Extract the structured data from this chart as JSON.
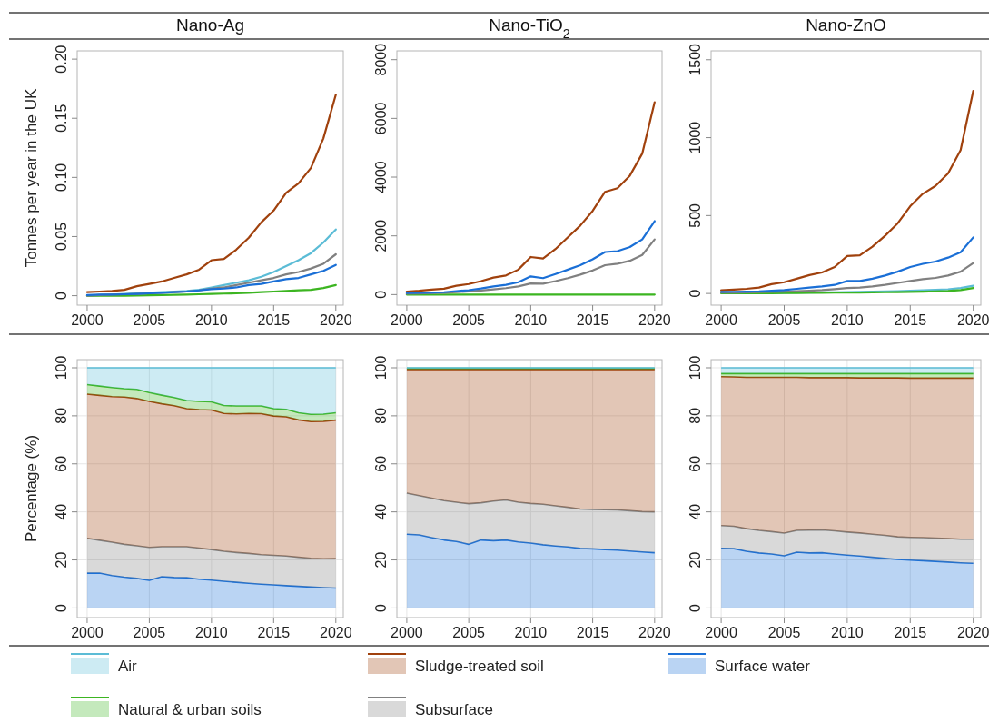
{
  "chart_data": [
    {
      "type": "line",
      "title": "Nano-Ag",
      "ylabel": "Tonnes per year in the UK",
      "x": [
        2000,
        2001,
        2002,
        2003,
        2004,
        2005,
        2006,
        2007,
        2008,
        2009,
        2010,
        2011,
        2012,
        2013,
        2014,
        2015,
        2016,
        2017,
        2018,
        2019,
        2020
      ],
      "xlim": [
        1999.2,
        2020.6
      ],
      "xticks": [
        2000,
        2005,
        2010,
        2015,
        2020
      ],
      "ylim": [
        -0.008,
        0.207
      ],
      "yticks": [
        0,
        0.05,
        {
          "value": 0.1,
          "label": "0.10"
        },
        0.15,
        {
          "value": 0.2,
          "label": "0.20"
        }
      ],
      "series": [
        {
          "color": "#5bbcd6",
          "values": [
            0,
            0.0005,
            0.001,
            0.0015,
            0.002,
            0.0025,
            0.003,
            0.0035,
            0.004,
            0.005,
            0.007,
            0.009,
            0.011,
            0.013,
            0.016,
            0.02,
            0.025,
            0.03,
            0.036,
            0.045,
            0.056
          ]
        },
        {
          "color": "#3cb521",
          "values": [
            0,
            0,
            0,
            0,
            0.0002,
            0.0004,
            0.0006,
            0.0008,
            0.001,
            0.0012,
            0.0015,
            0.0018,
            0.002,
            0.0025,
            0.003,
            0.0035,
            0.004,
            0.0045,
            0.005,
            0.0065,
            0.009
          ]
        },
        {
          "color": "#a0410d",
          "values": [
            0.003,
            0.0035,
            0.004,
            0.005,
            0.008,
            0.01,
            0.012,
            0.015,
            0.018,
            0.022,
            0.03,
            0.031,
            0.039,
            0.049,
            0.062,
            0.072,
            0.087,
            0.095,
            0.108,
            0.133,
            0.17
          ]
        },
        {
          "color": "#808080",
          "values": [
            0,
            0.0005,
            0.001,
            0.0012,
            0.0015,
            0.002,
            0.0025,
            0.003,
            0.0035,
            0.0045,
            0.006,
            0.007,
            0.009,
            0.011,
            0.013,
            0.015,
            0.018,
            0.02,
            0.023,
            0.027,
            0.035
          ]
        },
        {
          "color": "#1a6fd6",
          "values": [
            0.0005,
            0.001,
            0.001,
            0.0012,
            0.0015,
            0.002,
            0.0025,
            0.003,
            0.0035,
            0.0045,
            0.0055,
            0.006,
            0.007,
            0.009,
            0.01,
            0.012,
            0.014,
            0.015,
            0.018,
            0.021,
            0.026
          ]
        }
      ]
    },
    {
      "type": "line",
      "title": "Nano-TiO$_{2}$",
      "x": [
        2000,
        2001,
        2002,
        2003,
        2004,
        2005,
        2006,
        2007,
        2008,
        2009,
        2010,
        2011,
        2012,
        2013,
        2014,
        2015,
        2016,
        2017,
        2018,
        2019,
        2020
      ],
      "xlim": [
        1999.2,
        2020.6
      ],
      "xticks": [
        2000,
        2005,
        2010,
        2015,
        2020
      ],
      "ylim": [
        -360,
        8300
      ],
      "yticks": [
        0,
        2000,
        4000,
        6000,
        8000
      ],
      "series": [
        {
          "color": "#3cb521",
          "values": [
            0,
            0,
            0,
            0,
            0,
            0,
            0,
            0,
            0,
            0,
            0,
            0,
            0,
            0,
            0,
            0,
            0,
            0,
            0,
            0,
            0
          ]
        },
        {
          "color": "#a0410d",
          "values": [
            100,
            130,
            170,
            200,
            300,
            360,
            460,
            580,
            650,
            850,
            1280,
            1230,
            1550,
            1950,
            2350,
            2850,
            3500,
            3620,
            4050,
            4800,
            6550
          ]
        },
        {
          "color": "#808080",
          "values": [
            30,
            40,
            50,
            60,
            80,
            110,
            140,
            180,
            220,
            280,
            380,
            370,
            460,
            560,
            680,
            820,
            1000,
            1050,
            1150,
            1350,
            1880
          ]
        },
        {
          "color": "#1a6fd6",
          "values": [
            50,
            60,
            70,
            80,
            120,
            150,
            210,
            280,
            330,
            420,
            620,
            560,
            700,
            850,
            1000,
            1200,
            1450,
            1480,
            1620,
            1880,
            2500
          ]
        }
      ]
    },
    {
      "type": "line",
      "title": "Nano-ZnO",
      "x": [
        2000,
        2001,
        2002,
        2003,
        2004,
        2005,
        2006,
        2007,
        2008,
        2009,
        2010,
        2011,
        2012,
        2013,
        2014,
        2015,
        2016,
        2017,
        2018,
        2019,
        2020
      ],
      "xlim": [
        1999.2,
        2020.6
      ],
      "xticks": [
        2000,
        2005,
        2010,
        2015,
        2020
      ],
      "ylim": [
        -75,
        1557
      ],
      "yticks": [
        0,
        500,
        1000,
        1500
      ],
      "series": [
        {
          "color": "#5bbcd6",
          "values": [
            null,
            null,
            3,
            3,
            4,
            4,
            5,
            6,
            7,
            8,
            9,
            10,
            12,
            13,
            15,
            17,
            20,
            23,
            27,
            35,
            50
          ]
        },
        {
          "color": "#3cb521",
          "values": [
            1,
            1,
            2,
            2,
            2,
            3,
            3,
            4,
            4,
            5,
            6,
            6,
            7,
            8,
            9,
            10,
            12,
            14,
            16,
            22,
            35
          ]
        },
        {
          "color": "#a0410d",
          "values": [
            20,
            25,
            30,
            38,
            60,
            72,
            95,
            118,
            135,
            170,
            240,
            245,
            300,
            370,
            450,
            560,
            640,
            690,
            770,
            920,
            1300
          ]
        },
        {
          "color": "#808080",
          "values": [
            5,
            6,
            7,
            8,
            10,
            12,
            15,
            18,
            22,
            28,
            35,
            38,
            45,
            55,
            68,
            80,
            92,
            100,
            115,
            140,
            195
          ]
        },
        {
          "color": "#1a6fd6",
          "values": [
            10,
            11,
            12,
            14,
            18,
            22,
            30,
            38,
            45,
            55,
            80,
            80,
            95,
            115,
            140,
            170,
            190,
            205,
            230,
            265,
            360
          ]
        }
      ]
    },
    {
      "type": "area",
      "stacked": true,
      "grid": true,
      "legend": "bottom",
      "ylabel": "Percentage (%)",
      "x": [
        2000,
        2001,
        2002,
        2003,
        2004,
        2005,
        2006,
        2007,
        2008,
        2009,
        2010,
        2011,
        2012,
        2013,
        2014,
        2015,
        2016,
        2017,
        2018,
        2019,
        2020
      ],
      "xlim": [
        1999.2,
        2020.6
      ],
      "xticks": [
        2000,
        2005,
        2010,
        2015,
        2020
      ],
      "ylim": [
        -4,
        103.4
      ],
      "yticks": [
        0,
        20,
        40,
        60,
        80,
        100
      ],
      "series": [
        {
          "name": "Surface water",
          "color": "#1a6fd6",
          "values": [
            14.5,
            14.5,
            13.5,
            12.8,
            12.3,
            11.5,
            13,
            12.7,
            12.6,
            12,
            11.6,
            11.1,
            10.7,
            10.3,
            9.9,
            9.6,
            9.3,
            9,
            8.7,
            8.5,
            8.3
          ]
        },
        {
          "name": "Subsurface",
          "color": "#808080",
          "values": [
            14.5,
            13.7,
            13.9,
            13.7,
            13.6,
            13.7,
            12.5,
            12.8,
            12.9,
            12.9,
            12.7,
            12.5,
            12.4,
            12.4,
            12.3,
            12.3,
            12.3,
            12.1,
            12,
            12,
            12.3
          ]
        },
        {
          "name": "Sludge-treated soil",
          "color": "#a0410d",
          "values": [
            60,
            60.3,
            60.6,
            61.3,
            61.3,
            60.8,
            59.5,
            58.7,
            57.5,
            57.7,
            58.1,
            57.4,
            57.7,
            58.3,
            58.7,
            58,
            58,
            57.2,
            56.9,
            57.2,
            57.6
          ]
        },
        {
          "name": "Natural & urban soils",
          "color": "#3cb521",
          "values": [
            4,
            3.9,
            3.8,
            3.5,
            3.8,
            3.7,
            3.6,
            3.4,
            3.4,
            3.4,
            3.4,
            3.3,
            3.3,
            3.1,
            3.2,
            3.1,
            3.1,
            3,
            3,
            3,
            3.1
          ]
        },
        {
          "name": "Air",
          "color": "#5bbcd6",
          "values": [
            7,
            7.6,
            8.2,
            8.7,
            9,
            10.3,
            11.4,
            12.4,
            13.6,
            14,
            14.2,
            15.7,
            15.9,
            15.9,
            15.9,
            17,
            17.3,
            18.7,
            19.4,
            19.3,
            18.7
          ]
        }
      ]
    },
    {
      "type": "area",
      "stacked": true,
      "grid": true,
      "x": [
        2000,
        2001,
        2002,
        2003,
        2004,
        2005,
        2006,
        2007,
        2008,
        2009,
        2010,
        2011,
        2012,
        2013,
        2014,
        2015,
        2016,
        2017,
        2018,
        2019,
        2020
      ],
      "xlim": [
        1999.2,
        2020.6
      ],
      "xticks": [
        2000,
        2005,
        2010,
        2015,
        2020
      ],
      "ylim": [
        -4,
        103.4
      ],
      "yticks": [
        0,
        20,
        40,
        60,
        80,
        100
      ],
      "series": [
        {
          "color": "#1a6fd6",
          "values": [
            30.7,
            30.4,
            29.3,
            28.3,
            27.7,
            26.5,
            28.3,
            28,
            28.3,
            27.5,
            27,
            26.3,
            25.8,
            25.4,
            24.8,
            24.6,
            24.3,
            24.1,
            23.7,
            23.3,
            23
          ]
        },
        {
          "color": "#808080",
          "values": [
            17.1,
            16.4,
            16.4,
            16.4,
            16.3,
            16.9,
            15.5,
            16.5,
            16.7,
            16.5,
            16.5,
            16.9,
            16.7,
            16.5,
            16.4,
            16.4,
            16.6,
            16.7,
            16.8,
            16.8,
            17
          ]
        },
        {
          "color": "#a0410d",
          "values": [
            51.5,
            52.5,
            53.6,
            54.6,
            55.3,
            55.9,
            55.5,
            54.8,
            54.3,
            55.3,
            55.8,
            56.1,
            56.8,
            57.4,
            58.1,
            58.3,
            58.4,
            58.5,
            58.8,
            59.2,
            59.3
          ]
        },
        {
          "color": "#3cb521",
          "values": [
            0.5,
            0.5,
            0.5,
            0.5,
            0.5,
            0.5,
            0.5,
            0.5,
            0.5,
            0.5,
            0.5,
            0.5,
            0.5,
            0.5,
            0.5,
            0.5,
            0.5,
            0.5,
            0.5,
            0.5,
            0.5
          ]
        },
        {
          "color": "#5bbcd6",
          "values": [
            0.2,
            0.2,
            0.2,
            0.2,
            0.2,
            0.2,
            0.2,
            0.2,
            0.2,
            0.2,
            0.2,
            0.2,
            0.2,
            0.2,
            0.2,
            0.2,
            0.2,
            0.2,
            0.2,
            0.2,
            0.2
          ]
        }
      ]
    },
    {
      "type": "area",
      "stacked": true,
      "grid": true,
      "x": [
        2000,
        2001,
        2002,
        2003,
        2004,
        2005,
        2006,
        2007,
        2008,
        2009,
        2010,
        2011,
        2012,
        2013,
        2014,
        2015,
        2016,
        2017,
        2018,
        2019,
        2020
      ],
      "xlim": [
        1999.2,
        2020.6
      ],
      "xticks": [
        2000,
        2005,
        2010,
        2015,
        2020
      ],
      "ylim": [
        -4,
        103.4
      ],
      "yticks": [
        0,
        20,
        40,
        60,
        80,
        100
      ],
      "series": [
        {
          "color": "#1a6fd6",
          "values": [
            24.8,
            24.7,
            23.6,
            22.9,
            22.5,
            21.7,
            23.2,
            22.9,
            23,
            22.5,
            22,
            21.6,
            21.1,
            20.7,
            20.2,
            19.9,
            19.7,
            19.4,
            19.1,
            18.8,
            18.6
          ]
        },
        {
          "color": "#808080",
          "values": [
            9.5,
            9.3,
            9.4,
            9.4,
            9.3,
            9.5,
            9.1,
            9.5,
            9.5,
            9.6,
            9.6,
            9.6,
            9.6,
            9.5,
            9.4,
            9.5,
            9.6,
            9.7,
            9.8,
            9.8,
            10
          ]
        },
        {
          "color": "#a0410d",
          "values": [
            62,
            62.2,
            63,
            63.7,
            64.2,
            64.8,
            63.7,
            63.5,
            63.4,
            63.8,
            64.3,
            64.6,
            65.1,
            65.6,
            66.2,
            66.3,
            66.4,
            66.6,
            66.8,
            67.1,
            67.1
          ]
        },
        {
          "color": "#3cb521",
          "values": [
            1.3,
            1.4,
            1.6,
            1.6,
            1.6,
            1.6,
            1.6,
            1.7,
            1.7,
            1.7,
            1.7,
            1.8,
            1.8,
            1.8,
            1.8,
            1.9,
            1.9,
            1.9,
            1.9,
            1.9,
            1.9
          ]
        },
        {
          "color": "#5bbcd6",
          "values": [
            2.4,
            2.4,
            2.4,
            2.4,
            2.4,
            2.4,
            2.4,
            2.4,
            2.4,
            2.4,
            2.4,
            2.4,
            2.4,
            2.4,
            2.4,
            2.4,
            2.4,
            2.4,
            2.4,
            2.4,
            2.4
          ]
        }
      ]
    }
  ]
}
